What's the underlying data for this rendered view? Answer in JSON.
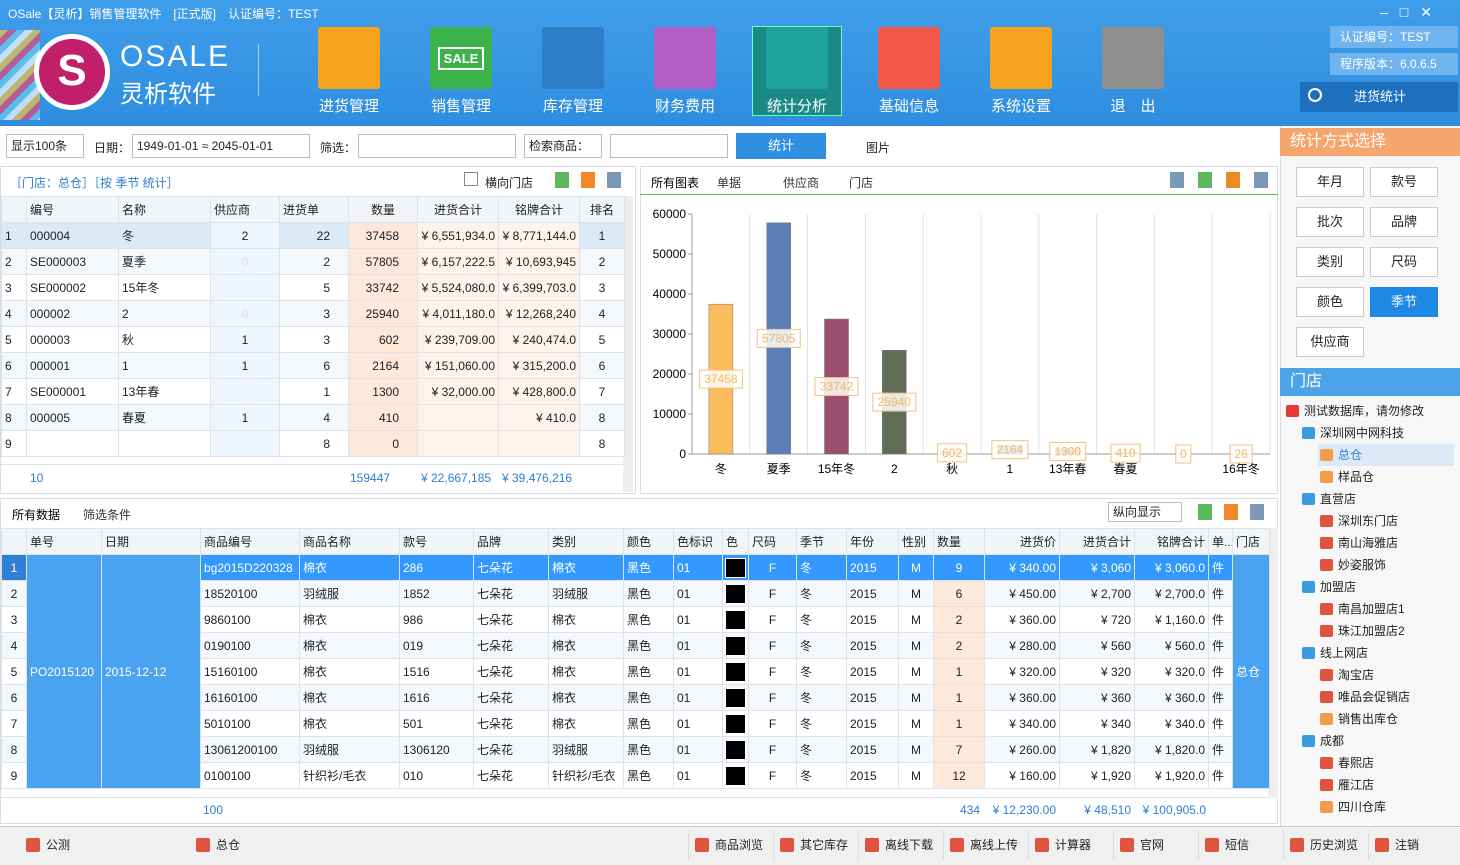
{
  "window": {
    "title": "OSale【灵析】销售管理软件　[正式版]　认证编号：TEST"
  },
  "logo": {
    "brand": "OSALE",
    "name": "灵析软件"
  },
  "nav": [
    {
      "label": "进货管理",
      "color": "#f7a21b"
    },
    {
      "label": "销售管理",
      "color": "#3cb34a",
      "icon_text": "SALE"
    },
    {
      "label": "库存管理",
      "color": "#2d7ec6"
    },
    {
      "label": "财务费用",
      "color": "#b35ec6"
    },
    {
      "label": "统计分析",
      "color": "#1fa39a"
    },
    {
      "label": "基础信息",
      "color": "#f2584a"
    },
    {
      "label": "系统设置",
      "color": "#f5a31e"
    },
    {
      "label": "退　出",
      "color": "#8e8e8e"
    }
  ],
  "nav_active": 4,
  "info": {
    "cert": "认证编号：TEST",
    "version": "程序版本：6.0.6.5",
    "search": "进货统计"
  },
  "toolbar": {
    "page_size": "显示100条",
    "date_label": "日期：",
    "date_range": "1949-01-01 ≈ 2045-01-01",
    "filter_label": "筛选：",
    "search_label": "检索商品：",
    "stat_button": "统计",
    "image_button": "图片"
  },
  "summary_panel": {
    "caption": "［门店：总仓］［按 季节 统计］",
    "horizontal_store": "横向门店",
    "columns": [
      "编号",
      "名称",
      "供应商",
      "进货单",
      "数量",
      "进货合计",
      "铭牌合计",
      "排名"
    ],
    "rows": [
      [
        "1",
        "000004",
        "冬",
        "2",
        "22",
        "37458",
        "¥ 6,551,934.0",
        "¥ 8,771,144.0",
        "1"
      ],
      [
        "2",
        "SE000003",
        "夏季",
        "0",
        "2",
        "57805",
        "¥ 6,157,222.5",
        "¥ 10,693,945",
        "2"
      ],
      [
        "3",
        "SE000002",
        "15年冬",
        null,
        "5",
        "33742",
        "¥ 5,524,080.0",
        "¥ 6,399,703.0",
        "3"
      ],
      [
        "4",
        "000002",
        "2",
        "0",
        "3",
        "25940",
        "¥ 4,011,180.0",
        "¥ 12,268,240",
        "4"
      ],
      [
        "5",
        "000003",
        "秋",
        "1",
        "3",
        "602",
        "¥ 239,709.00",
        "¥ 240,474.0",
        "5"
      ],
      [
        "6",
        "000001",
        "1",
        "1",
        "6",
        "2164",
        "¥ 151,060.00",
        "¥ 315,200.0",
        "6"
      ],
      [
        "7",
        "SE000001",
        "13年春",
        null,
        "1",
        "1300",
        "¥ 32,000.00",
        "¥ 428,800.0",
        "7"
      ],
      [
        "8",
        "000005",
        "春夏",
        "1",
        "4",
        "410",
        null,
        "¥ 410.0",
        "8"
      ],
      [
        "9",
        null,
        null,
        null,
        "8",
        "0",
        null,
        null,
        "8"
      ]
    ],
    "footer": {
      "count": "10",
      "qty": "159447",
      "amount": "¥ 22,667,185",
      "tag_amount": "¥ 39,476,216"
    }
  },
  "chart_panel": {
    "tabs": [
      "所有图表",
      "单据",
      "供应商",
      "门店"
    ]
  },
  "chart_data": {
    "type": "bar",
    "categories": [
      "冬",
      "夏季",
      "15年冬",
      "2",
      "秋",
      "1",
      "13年春",
      "春夏",
      null,
      "16年冬"
    ],
    "values": [
      37458,
      57805,
      33742,
      25940,
      602,
      2164,
      1300,
      410,
      0,
      26
    ],
    "colors": [
      "#fbbd5c",
      "#5b7eb6",
      "#9b4f6f",
      "#5e6c58"
    ],
    "ylim": [
      0,
      60000
    ],
    "yticks": [
      0,
      10000,
      20000,
      30000,
      40000,
      50000,
      60000
    ],
    "grid": true
  },
  "detail_panel": {
    "tabs": [
      "所有数据",
      "筛选条件"
    ],
    "view_mode": "纵向显示",
    "columns": [
      "单号",
      "日期",
      "商品编号",
      "商品名称",
      "款号",
      "品牌",
      "类别",
      "颜色",
      "色标识",
      "色",
      "尺码",
      "季节",
      "年份",
      "性别",
      "数量",
      "进货价",
      "进货合计",
      "铭牌合计",
      "单...",
      "门店"
    ],
    "order_no": "PO2015120",
    "date": "2015-12-12",
    "store": "总仓",
    "rows": [
      [
        "1",
        "bg2015D220328",
        "棉衣",
        "286",
        "七朵花",
        "棉衣",
        "黑色",
        "01",
        "F",
        "冬",
        "2015",
        "M",
        "9",
        "¥ 340.00",
        "¥ 3,060",
        "¥ 3,060.0",
        "件"
      ],
      [
        "2",
        "18520100",
        "羽绒服",
        "1852",
        "七朵花",
        "羽绒服",
        "黑色",
        "01",
        "F",
        "冬",
        "2015",
        "M",
        "6",
        "¥ 450.00",
        "¥ 2,700",
        "¥ 2,700.0",
        "件"
      ],
      [
        "3",
        "9860100",
        "棉衣",
        "986",
        "七朵花",
        "棉衣",
        "黑色",
        "01",
        "F",
        "冬",
        "2015",
        "M",
        "2",
        "¥ 360.00",
        "¥ 720",
        "¥ 1,160.0",
        "件"
      ],
      [
        "4",
        "0190100",
        "棉衣",
        "019",
        "七朵花",
        "棉衣",
        "黑色",
        "01",
        "F",
        "冬",
        "2015",
        "M",
        "2",
        "¥ 280.00",
        "¥ 560",
        "¥ 560.0",
        "件"
      ],
      [
        "5",
        "15160100",
        "棉衣",
        "1516",
        "七朵花",
        "棉衣",
        "黑色",
        "01",
        "F",
        "冬",
        "2015",
        "M",
        "1",
        "¥ 320.00",
        "¥ 320",
        "¥ 320.0",
        "件"
      ],
      [
        "6",
        "16160100",
        "棉衣",
        "1616",
        "七朵花",
        "棉衣",
        "黑色",
        "01",
        "F",
        "冬",
        "2015",
        "M",
        "1",
        "¥ 360.00",
        "¥ 360",
        "¥ 360.0",
        "件"
      ],
      [
        "7",
        "5010100",
        "棉衣",
        "501",
        "七朵花",
        "棉衣",
        "黑色",
        "01",
        "F",
        "冬",
        "2015",
        "M",
        "1",
        "¥ 340.00",
        "¥ 340",
        "¥ 340.0",
        "件"
      ],
      [
        "8",
        "13061200100",
        "羽绒服",
        "1306120",
        "七朵花",
        "羽绒服",
        "黑色",
        "01",
        "F",
        "冬",
        "2015",
        "M",
        "7",
        "¥ 260.00",
        "¥ 1,820",
        "¥ 1,820.0",
        "件"
      ],
      [
        "9",
        "0100100",
        "针织衫/毛衣",
        "010",
        "七朵花",
        "针织衫/毛衣",
        "黑色",
        "01",
        "F",
        "冬",
        "2015",
        "M",
        "12",
        "¥ 160.00",
        "¥ 1,920",
        "¥ 1,920.0",
        "件"
      ]
    ],
    "footer": {
      "count": "100",
      "qty": "434",
      "price": "¥ 12,230.00",
      "amount": "¥ 48,510",
      "tag_amount": "¥ 100,905.0"
    }
  },
  "stat_mode": {
    "title": "统计方式选择",
    "options": [
      "年月",
      "款号",
      "批次",
      "品牌",
      "类别",
      "尺码",
      "颜色",
      "季节",
      "供应商"
    ],
    "selected": 7
  },
  "store_panel": {
    "title": "门店",
    "root": "测试数据库，请勿修改",
    "selected": "总仓",
    "groups": [
      {
        "label": "深圳网中网科技",
        "items": [
          "总仓",
          "样品仓"
        ]
      },
      {
        "label": "直营店",
        "items": [
          "深圳东门店",
          "南山海雅店",
          "妙姿服饰"
        ]
      },
      {
        "label": "加盟店",
        "items": [
          "南昌加盟店1",
          "珠江加盟店2"
        ]
      },
      {
        "label": "线上网店",
        "items": [
          "淘宝店",
          "唯品会促销店",
          "销售出库仓"
        ]
      },
      {
        "label": "成都",
        "items": [
          "春熙店",
          "雁江店",
          "四川仓库"
        ]
      }
    ]
  },
  "status_bar": {
    "left": [
      "公测",
      "总仓"
    ],
    "buttons": [
      "商品浏览",
      "其它库存",
      "离线下载",
      "离线上传",
      "计算器",
      "官网",
      "短信",
      "历史浏览",
      "注销"
    ]
  }
}
